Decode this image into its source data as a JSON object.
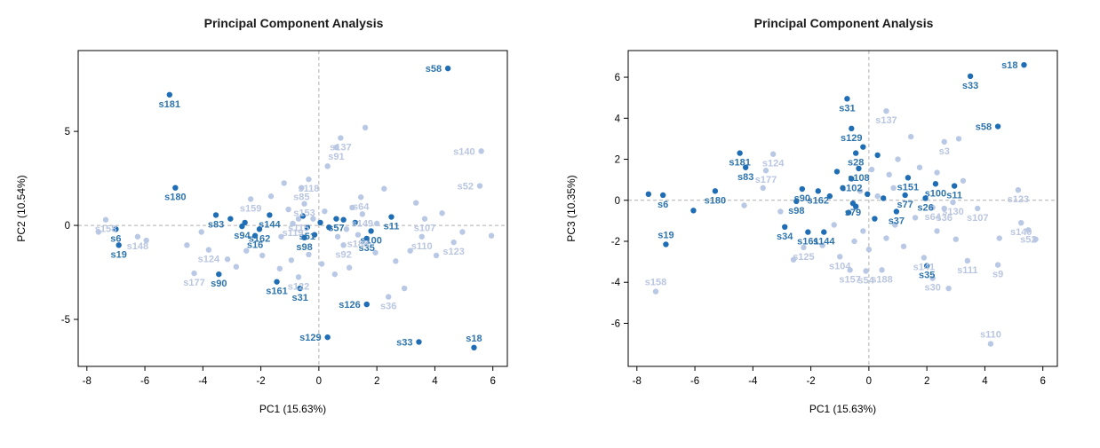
{
  "page": {
    "background": "#ffffff"
  },
  "chart_data": [
    {
      "type": "scatter",
      "title": "Principal Component Analysis",
      "xlabel": "PC1 (15.63%)",
      "ylabel": "PC2 (10.54%)",
      "xlim": [
        -8.3,
        6.5
      ],
      "ylim": [
        -7.5,
        9.3
      ],
      "xticks": [
        -8,
        -6,
        -4,
        -2,
        0,
        2,
        4,
        6
      ],
      "yticks": [
        -5,
        0,
        5
      ],
      "grid": "dashed-zero-lines",
      "legend": "none",
      "colors": {
        "dark": "#1f6eb5",
        "light": "#b9c8e4",
        "dark_label": "#2e74ad",
        "light_label": "#bac6e0",
        "axis": "#000000",
        "refline": "#b0b0b0"
      },
      "points": [
        [
          4.45,
          8.35,
          "s58",
          "d",
          "l"
        ],
        [
          -5.15,
          6.95,
          "s181",
          "d",
          "b"
        ],
        [
          -4.95,
          2.0,
          "s180",
          "d",
          "b"
        ],
        [
          -3.55,
          0.55,
          "s83",
          "d",
          "b"
        ],
        [
          -2.65,
          -0.05,
          "s94",
          "d",
          "b"
        ],
        [
          -2.2,
          -0.55,
          "s16",
          "d",
          "b"
        ],
        [
          -2.05,
          -0.2,
          "s162",
          "d",
          "b"
        ],
        [
          -1.7,
          0.55,
          "s144",
          "d",
          "b"
        ],
        [
          -7.0,
          -0.2,
          "s6",
          "d",
          "b"
        ],
        [
          -6.9,
          -1.05,
          "s19",
          "d",
          "b"
        ],
        [
          -3.45,
          -2.6,
          "s90",
          "d",
          "b"
        ],
        [
          -1.45,
          -3.0,
          "s161",
          "d",
          "b"
        ],
        [
          -0.65,
          -3.35,
          "s31",
          "d",
          "b"
        ],
        [
          0.3,
          -5.95,
          "s129",
          "d",
          "l"
        ],
        [
          1.65,
          -4.2,
          "s126",
          "d",
          "l"
        ],
        [
          3.45,
          -6.2,
          "s33",
          "d",
          "l"
        ],
        [
          5.35,
          -6.5,
          "s18",
          "d",
          "a"
        ],
        [
          1.65,
          -0.7,
          "s35",
          "d",
          "b"
        ],
        [
          1.8,
          -0.3,
          "s100",
          "d",
          "b"
        ],
        [
          2.5,
          0.45,
          "s11",
          "d",
          "b"
        ],
        [
          0.6,
          0.35,
          "s57",
          "d",
          "b"
        ],
        [
          -0.4,
          -0.1,
          "s51",
          "d",
          "b"
        ],
        [
          -0.5,
          -0.65,
          "s98",
          "d",
          "b"
        ],
        [
          -7.35,
          0.3,
          "s158",
          "l",
          "b"
        ],
        [
          -6.25,
          -0.6,
          "s148",
          "l",
          "b"
        ],
        [
          -3.8,
          -1.3,
          "s124",
          "l",
          "b"
        ],
        [
          -4.3,
          -2.55,
          "s177",
          "l",
          "b"
        ],
        [
          -2.35,
          1.4,
          "s159",
          "l",
          "b"
        ],
        [
          -0.35,
          2.45,
          "s118",
          "l",
          "b"
        ],
        [
          -0.6,
          2.0,
          "s85",
          "l",
          "b"
        ],
        [
          0.75,
          4.65,
          "s137",
          "l",
          "b"
        ],
        [
          0.6,
          4.15,
          "s91",
          "l",
          "b"
        ],
        [
          5.6,
          3.95,
          "s140",
          "l",
          "l"
        ],
        [
          5.55,
          2.1,
          "s52",
          "l",
          "l"
        ],
        [
          1.45,
          1.5,
          "s64",
          "l",
          "b"
        ],
        [
          1.5,
          0.6,
          "s149",
          "l",
          "b"
        ],
        [
          3.65,
          0.35,
          "s107",
          "l",
          "b"
        ],
        [
          3.55,
          -0.6,
          "s110",
          "l",
          "b"
        ],
        [
          4.65,
          -0.9,
          "s123",
          "l",
          "b"
        ],
        [
          1.35,
          -0.5,
          "s188",
          "l",
          "b"
        ],
        [
          0.85,
          -1.05,
          "s92",
          "l",
          "b"
        ],
        [
          2.4,
          -3.8,
          "s36",
          "l",
          "b"
        ],
        [
          -0.7,
          -2.75,
          "s122",
          "l",
          "b"
        ],
        [
          -0.5,
          1.15,
          "s153",
          "l",
          "b"
        ],
        [
          -0.9,
          0.1,
          "s119",
          "l",
          "b"
        ],
        [
          -0.7,
          0.35,
          "s115",
          "l",
          "b"
        ],
        [
          -7.6,
          -0.35,
          "",
          "l"
        ],
        [
          -5.95,
          -0.8,
          "",
          "l"
        ],
        [
          -4.55,
          -1.05,
          "",
          "l"
        ],
        [
          -4.05,
          -0.35,
          "",
          "l"
        ],
        [
          -3.15,
          -1.8,
          "",
          "l"
        ],
        [
          -2.85,
          -2.2,
          "",
          "l"
        ],
        [
          -2.5,
          -1.35,
          "",
          "l"
        ],
        [
          -1.95,
          -1.6,
          "",
          "l"
        ],
        [
          -1.35,
          -2.3,
          "",
          "l"
        ],
        [
          -0.95,
          -1.85,
          "",
          "l"
        ],
        [
          -0.35,
          -1.55,
          "",
          "l"
        ],
        [
          0.1,
          -2.05,
          "",
          "l"
        ],
        [
          0.55,
          -2.6,
          "",
          "l"
        ],
        [
          1.05,
          -2.25,
          "",
          "l"
        ],
        [
          1.95,
          -1.45,
          "",
          "l"
        ],
        [
          2.65,
          -1.9,
          "",
          "l"
        ],
        [
          3.15,
          -1.35,
          "",
          "l"
        ],
        [
          1.6,
          5.2,
          "",
          "l"
        ],
        [
          0.3,
          3.15,
          "",
          "l"
        ],
        [
          -1.2,
          2.25,
          "",
          "l"
        ],
        [
          -1.65,
          1.55,
          "",
          "l"
        ],
        [
          2.25,
          1.95,
          "",
          "l"
        ],
        [
          3.35,
          1.2,
          "",
          "l"
        ],
        [
          4.25,
          0.65,
          "",
          "l"
        ],
        [
          4.95,
          -0.35,
          "",
          "l"
        ],
        [
          5.95,
          -0.55,
          "",
          "l"
        ],
        [
          4.05,
          -1.6,
          "",
          "l"
        ],
        [
          2.95,
          -3.35,
          "",
          "l"
        ],
        [
          0.95,
          -0.2,
          "",
          "l"
        ],
        [
          0.2,
          0.75,
          "",
          "l"
        ],
        [
          -0.2,
          0.35,
          "",
          "l"
        ],
        [
          0.65,
          -0.6,
          "",
          "l"
        ],
        [
          -1.05,
          0.85,
          "",
          "l"
        ],
        [
          1.15,
          0.95,
          "",
          "l"
        ],
        [
          -1.3,
          -0.6,
          "",
          "l"
        ],
        [
          2.0,
          0.1,
          "",
          "l"
        ],
        [
          -3.05,
          0.35,
          "",
          "d"
        ],
        [
          -2.55,
          0.15,
          "",
          "d"
        ],
        [
          -0.15,
          -0.5,
          "",
          "d"
        ],
        [
          0.35,
          -0.1,
          "",
          "d"
        ],
        [
          0.85,
          0.3,
          "",
          "d"
        ],
        [
          0.05,
          0.15,
          "",
          "d"
        ],
        [
          -0.55,
          0.5,
          "",
          "d"
        ],
        [
          1.25,
          0.15,
          "",
          "d"
        ]
      ]
    },
    {
      "type": "scatter",
      "title": "Principal Component Analysis",
      "xlabel": "PC1 (15.63%)",
      "ylabel": "PC3 (10.35%)",
      "xlim": [
        -8.3,
        6.5
      ],
      "ylim": [
        -8.1,
        7.3
      ],
      "xticks": [
        -8,
        -6,
        -4,
        -2,
        0,
        2,
        4,
        6
      ],
      "yticks": [
        -6,
        -4,
        -2,
        0,
        2,
        4,
        6
      ],
      "grid": "dashed-zero-lines",
      "legend": "none",
      "colors": {
        "dark": "#1f6eb5",
        "light": "#b9c8e4",
        "dark_label": "#2e74ad",
        "light_label": "#bac6e0",
        "axis": "#000000",
        "refline": "#b0b0b0"
      },
      "points": [
        [
          5.35,
          6.6,
          "s18",
          "d",
          "l"
        ],
        [
          3.5,
          6.05,
          "s33",
          "d",
          "b"
        ],
        [
          4.45,
          3.6,
          "s58",
          "d",
          "l"
        ],
        [
          -0.75,
          4.95,
          "s31",
          "d",
          "b"
        ],
        [
          -0.6,
          3.5,
          "s129",
          "d",
          "b"
        ],
        [
          -0.45,
          2.3,
          "s28",
          "d",
          "b"
        ],
        [
          -4.45,
          2.3,
          "s181",
          "d",
          "b"
        ],
        [
          -4.25,
          1.6,
          "s83",
          "d",
          "b"
        ],
        [
          -5.3,
          0.45,
          "s180",
          "d",
          "b"
        ],
        [
          -7.1,
          0.25,
          "s6",
          "d",
          "b"
        ],
        [
          -7.0,
          -2.15,
          "s19",
          "d",
          "a"
        ],
        [
          -2.3,
          0.55,
          "s90",
          "d",
          "b"
        ],
        [
          -2.5,
          -0.05,
          "s98",
          "d",
          "b"
        ],
        [
          -2.9,
          -1.3,
          "s34",
          "d",
          "b"
        ],
        [
          -2.1,
          -1.55,
          "s161",
          "d",
          "b"
        ],
        [
          -1.55,
          -1.55,
          "s144",
          "d",
          "b"
        ],
        [
          -1.75,
          0.45,
          "s162",
          "d",
          "b"
        ],
        [
          1.35,
          1.1,
          "s151",
          "d",
          "b"
        ],
        [
          2.3,
          0.8,
          "s100",
          "d",
          "b"
        ],
        [
          2.95,
          0.7,
          "s11",
          "d",
          "b"
        ],
        [
          1.25,
          0.25,
          "s77",
          "d",
          "b"
        ],
        [
          1.95,
          0.1,
          "s26",
          "d",
          "b"
        ],
        [
          -0.55,
          -0.15,
          "s79",
          "d",
          "b"
        ],
        [
          0.95,
          -0.55,
          "s37",
          "d",
          "b"
        ],
        [
          2.0,
          -3.2,
          "s35",
          "d",
          "b"
        ],
        [
          -0.6,
          1.05,
          "s102",
          "d",
          "b"
        ],
        [
          -0.35,
          1.55,
          "s108",
          "d",
          "b"
        ],
        [
          0.6,
          4.35,
          "s137",
          "l",
          "b"
        ],
        [
          2.6,
          2.85,
          "s3",
          "l",
          "b"
        ],
        [
          -3.3,
          2.25,
          "s124",
          "l",
          "b"
        ],
        [
          -3.55,
          1.45,
          "s177",
          "l",
          "b"
        ],
        [
          5.15,
          0.5,
          "s123",
          "l",
          "b"
        ],
        [
          2.9,
          -0.1,
          "s130",
          "l",
          "b"
        ],
        [
          3.75,
          -0.4,
          "s107",
          "l",
          "b"
        ],
        [
          5.25,
          -1.1,
          "s140",
          "l",
          "b"
        ],
        [
          5.5,
          -1.45,
          "s52",
          "l",
          "b"
        ],
        [
          2.2,
          -0.35,
          "s64",
          "l",
          "b"
        ],
        [
          2.6,
          -0.4,
          "s36",
          "l",
          "b"
        ],
        [
          -2.25,
          -2.3,
          "s125",
          "l",
          "b"
        ],
        [
          -1.0,
          -2.75,
          "s104",
          "l",
          "b"
        ],
        [
          -0.65,
          -3.4,
          "s157",
          "l",
          "b"
        ],
        [
          -0.1,
          -3.45,
          "s54",
          "l",
          "b"
        ],
        [
          0.45,
          -3.4,
          "s188",
          "l",
          "b"
        ],
        [
          1.9,
          -2.8,
          "s141",
          "l",
          "b"
        ],
        [
          2.2,
          -3.8,
          "s30",
          "l",
          "b"
        ],
        [
          3.4,
          -2.95,
          "s111",
          "l",
          "b"
        ],
        [
          4.45,
          -3.15,
          "s9",
          "l",
          "b"
        ],
        [
          -7.35,
          -4.45,
          "s158",
          "l",
          "a"
        ],
        [
          4.2,
          -7.0,
          "s110",
          "l",
          "a"
        ],
        [
          -7.6,
          0.3,
          "",
          "d"
        ],
        [
          -6.05,
          -0.5,
          "",
          "d"
        ],
        [
          -0.2,
          2.6,
          "",
          "d"
        ],
        [
          0.3,
          2.2,
          "",
          "d"
        ],
        [
          -1.1,
          1.4,
          "",
          "d"
        ],
        [
          -0.9,
          0.6,
          "",
          "d"
        ],
        [
          -1.35,
          0.2,
          "",
          "d"
        ],
        [
          -0.7,
          -0.6,
          "",
          "d"
        ],
        [
          0.2,
          -0.9,
          "",
          "d"
        ],
        [
          -0.05,
          0.3,
          "",
          "d"
        ],
        [
          0.5,
          0.1,
          "",
          "d"
        ],
        [
          -0.45,
          -0.3,
          "",
          "d"
        ],
        [
          -3.65,
          0.6,
          "",
          "l"
        ],
        [
          -3.05,
          -0.55,
          "",
          "l"
        ],
        [
          -2.6,
          -2.9,
          "",
          "l"
        ],
        [
          -1.6,
          -2.2,
          "",
          "l"
        ],
        [
          -1.2,
          -1.2,
          "",
          "l"
        ],
        [
          -0.2,
          -1.5,
          "",
          "l"
        ],
        [
          0.6,
          -1.85,
          "",
          "l"
        ],
        [
          1.2,
          -2.25,
          "",
          "l"
        ],
        [
          0.9,
          -1.2,
          "",
          "l"
        ],
        [
          1.6,
          -0.85,
          "",
          "l"
        ],
        [
          2.35,
          -1.5,
          "",
          "l"
        ],
        [
          3.0,
          -1.9,
          "",
          "l"
        ],
        [
          4.5,
          -1.85,
          "",
          "l"
        ],
        [
          5.75,
          -1.9,
          "",
          "l"
        ],
        [
          0.1,
          1.5,
          "",
          "l"
        ],
        [
          0.7,
          1.25,
          "",
          "l"
        ],
        [
          1.0,
          2.0,
          "",
          "l"
        ],
        [
          1.75,
          1.6,
          "",
          "l"
        ],
        [
          2.35,
          1.35,
          "",
          "l"
        ],
        [
          3.25,
          0.95,
          "",
          "l"
        ],
        [
          -0.3,
          0.45,
          "",
          "l"
        ],
        [
          0.3,
          0.2,
          "",
          "l"
        ],
        [
          0.85,
          0.6,
          "",
          "l"
        ],
        [
          -4.3,
          -0.25,
          "",
          "l"
        ],
        [
          2.75,
          -4.3,
          "",
          "l"
        ],
        [
          3.1,
          3.0,
          "",
          "l"
        ],
        [
          1.45,
          3.1,
          "",
          "l"
        ],
        [
          0.0,
          -2.4,
          "",
          "l"
        ],
        [
          -0.5,
          -2.0,
          "",
          "l"
        ]
      ]
    }
  ]
}
